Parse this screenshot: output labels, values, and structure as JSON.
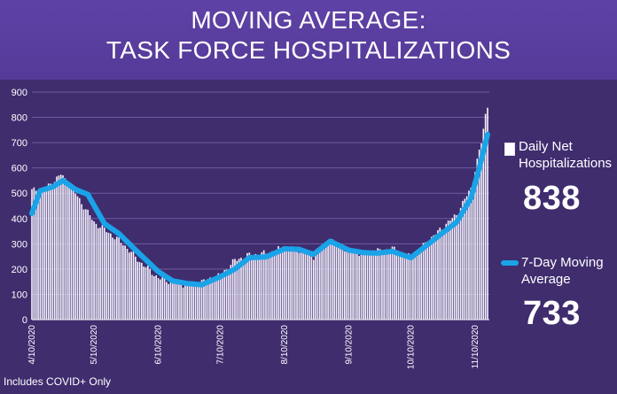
{
  "header": {
    "title_line1": "MOVING AVERAGE:",
    "title_line2": "TASK FORCE HOSPITALIZATIONS"
  },
  "legend": {
    "daily_label_line1": "Daily Net",
    "daily_label_line2": "Hospitalizations",
    "daily_value": "838",
    "avg_label_line1": "7-Day Moving",
    "avg_label_line2": "Average",
    "avg_value": "733"
  },
  "footnote": "Includes COVID+ Only",
  "colors": {
    "background": "#3f2d6e",
    "header": "#5b3fa2",
    "bars": "#ffffff",
    "moving_average": "#1aa3e8"
  },
  "chart_data": {
    "type": "bar",
    "title": "MOVING AVERAGE: TASK FORCE HOSPITALIZATIONS",
    "xlabel": "",
    "ylabel": "",
    "ylim": [
      0,
      900
    ],
    "yticks": [
      0,
      100,
      200,
      300,
      400,
      500,
      600,
      700,
      800,
      900
    ],
    "xtick_labels": [
      "4/10/2020",
      "5/10/2020",
      "6/10/2020",
      "7/10/2020",
      "8/10/2020",
      "9/10/2020",
      "10/10/2020",
      "11/10/2020"
    ],
    "grid": true,
    "legend_position": "right",
    "series": [
      {
        "name": "Daily Net Hospitalizations",
        "type": "bar",
        "anchors": [
          [
            "4/10/2020",
            510
          ],
          [
            "4/17/2020",
            520
          ],
          [
            "4/24/2020",
            575
          ],
          [
            "5/1/2020",
            500
          ],
          [
            "5/10/2020",
            385
          ],
          [
            "5/17/2020",
            345
          ],
          [
            "5/24/2020",
            300
          ],
          [
            "6/1/2020",
            230
          ],
          [
            "6/10/2020",
            165
          ],
          [
            "6/17/2020",
            148
          ],
          [
            "6/24/2020",
            138
          ],
          [
            "7/1/2020",
            150
          ],
          [
            "7/10/2020",
            175
          ],
          [
            "7/17/2020",
            235
          ],
          [
            "7/24/2020",
            255
          ],
          [
            "8/1/2020",
            262
          ],
          [
            "8/10/2020",
            285
          ],
          [
            "8/17/2020",
            275
          ],
          [
            "8/24/2020",
            250
          ],
          [
            "9/1/2020",
            315
          ],
          [
            "9/10/2020",
            270
          ],
          [
            "9/17/2020",
            262
          ],
          [
            "9/24/2020",
            270
          ],
          [
            "10/1/2020",
            280
          ],
          [
            "10/10/2020",
            245
          ],
          [
            "10/17/2020",
            300
          ],
          [
            "10/24/2020",
            355
          ],
          [
            "11/1/2020",
            415
          ],
          [
            "11/8/2020",
            520
          ],
          [
            "11/13/2020",
            700
          ],
          [
            "11/15/2020",
            810
          ],
          [
            "11/16/2020",
            838
          ]
        ],
        "last_value": 838
      },
      {
        "name": "7-Day Moving Average",
        "type": "line",
        "anchors": [
          [
            "4/10/2020",
            420
          ],
          [
            "4/14/2020",
            510
          ],
          [
            "4/20/2020",
            525
          ],
          [
            "4/25/2020",
            550
          ],
          [
            "5/1/2020",
            515
          ],
          [
            "5/7/2020",
            495
          ],
          [
            "5/15/2020",
            380
          ],
          [
            "5/22/2020",
            340
          ],
          [
            "6/1/2020",
            260
          ],
          [
            "6/10/2020",
            190
          ],
          [
            "6/17/2020",
            153
          ],
          [
            "6/24/2020",
            143
          ],
          [
            "7/1/2020",
            138
          ],
          [
            "7/10/2020",
            170
          ],
          [
            "7/17/2020",
            200
          ],
          [
            "7/24/2020",
            245
          ],
          [
            "8/1/2020",
            248
          ],
          [
            "8/10/2020",
            280
          ],
          [
            "8/17/2020",
            278
          ],
          [
            "8/24/2020",
            258
          ],
          [
            "9/1/2020",
            310
          ],
          [
            "9/10/2020",
            275
          ],
          [
            "9/17/2020",
            265
          ],
          [
            "9/24/2020",
            263
          ],
          [
            "10/1/2020",
            270
          ],
          [
            "10/10/2020",
            245
          ],
          [
            "10/17/2020",
            290
          ],
          [
            "10/24/2020",
            335
          ],
          [
            "11/1/2020",
            385
          ],
          [
            "11/8/2020",
            480
          ],
          [
            "11/12/2020",
            600
          ],
          [
            "11/16/2020",
            733
          ]
        ],
        "last_value": 733
      }
    ]
  }
}
